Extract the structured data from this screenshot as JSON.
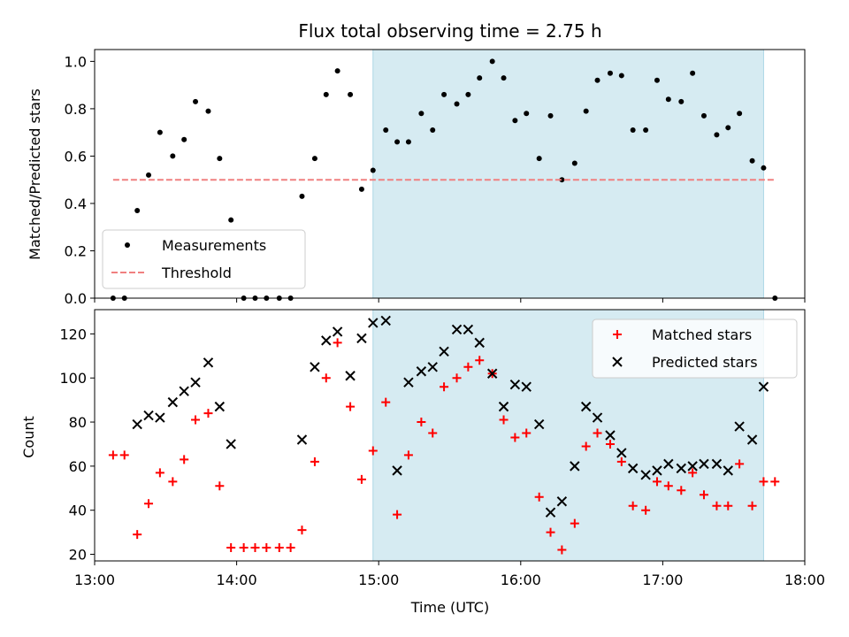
{
  "chart_data": [
    {
      "type": "scatter",
      "title": "Flux total observing time = 2.75 h",
      "xlabel": "",
      "ylabel": "Matched/Predicted stars",
      "xlim": [
        13.0,
        18.0
      ],
      "ylim": [
        0,
        1.05
      ],
      "yticks": [
        0.0,
        0.2,
        0.4,
        0.6,
        0.8,
        1.0
      ],
      "ytick_labels": [
        "0.0",
        "0.2",
        "0.4",
        "0.6",
        "0.8",
        "1.0"
      ],
      "shaded_region": {
        "x_start": 14.96,
        "x_end": 17.71
      },
      "legend": {
        "position": "lower-left",
        "entries": [
          "Measurements",
          "Threshold"
        ]
      },
      "series": [
        {
          "name": "Measurements",
          "marker": "dot",
          "color": "#000000",
          "points": [
            [
              13.13,
              0.0
            ],
            [
              13.21,
              0.0
            ],
            [
              13.3,
              0.37
            ],
            [
              13.38,
              0.52
            ],
            [
              13.46,
              0.7
            ],
            [
              13.55,
              0.6
            ],
            [
              13.63,
              0.67
            ],
            [
              13.71,
              0.83
            ],
            [
              13.8,
              0.79
            ],
            [
              13.88,
              0.59
            ],
            [
              13.96,
              0.33
            ],
            [
              14.05,
              0.0
            ],
            [
              14.13,
              0.0
            ],
            [
              14.21,
              0.0
            ],
            [
              14.3,
              0.0
            ],
            [
              14.38,
              0.0
            ],
            [
              14.46,
              0.43
            ],
            [
              14.55,
              0.59
            ],
            [
              14.63,
              0.86
            ],
            [
              14.71,
              0.96
            ],
            [
              14.8,
              0.86
            ],
            [
              14.88,
              0.46
            ],
            [
              14.96,
              0.54
            ],
            [
              15.05,
              0.71
            ],
            [
              15.13,
              0.66
            ],
            [
              15.21,
              0.66
            ],
            [
              15.3,
              0.78
            ],
            [
              15.38,
              0.71
            ],
            [
              15.46,
              0.86
            ],
            [
              15.55,
              0.82
            ],
            [
              15.63,
              0.86
            ],
            [
              15.71,
              0.93
            ],
            [
              15.8,
              1.0
            ],
            [
              15.88,
              0.93
            ],
            [
              15.96,
              0.75
            ],
            [
              16.04,
              0.78
            ],
            [
              16.13,
              0.59
            ],
            [
              16.21,
              0.77
            ],
            [
              16.29,
              0.5
            ],
            [
              16.38,
              0.57
            ],
            [
              16.46,
              0.79
            ],
            [
              16.54,
              0.92
            ],
            [
              16.63,
              0.95
            ],
            [
              16.71,
              0.94
            ],
            [
              16.79,
              0.71
            ],
            [
              16.88,
              0.71
            ],
            [
              16.96,
              0.92
            ],
            [
              17.04,
              0.84
            ],
            [
              17.13,
              0.83
            ],
            [
              17.21,
              0.95
            ],
            [
              17.29,
              0.77
            ],
            [
              17.38,
              0.69
            ],
            [
              17.46,
              0.72
            ],
            [
              17.54,
              0.78
            ],
            [
              17.63,
              0.58
            ],
            [
              17.71,
              0.55
            ],
            [
              17.79,
              0.0
            ]
          ]
        },
        {
          "name": "Threshold",
          "style": "dashed",
          "color": "#f08080",
          "points": [
            [
              13.13,
              0.5
            ],
            [
              17.79,
              0.5
            ]
          ]
        }
      ]
    },
    {
      "type": "scatter",
      "title": "",
      "xlabel": "Time (UTC)",
      "ylabel": "Count",
      "xlim": [
        13.0,
        18.0
      ],
      "ylim": [
        17,
        131
      ],
      "xticks": [
        13,
        14,
        15,
        16,
        17,
        18
      ],
      "xtick_labels": [
        "13:00",
        "14:00",
        "15:00",
        "16:00",
        "17:00",
        "18:00"
      ],
      "yticks": [
        20,
        40,
        60,
        80,
        100,
        120
      ],
      "ytick_labels": [
        "20",
        "40",
        "60",
        "80",
        "100",
        "120"
      ],
      "shaded_region": {
        "x_start": 14.96,
        "x_end": 17.71
      },
      "legend": {
        "position": "upper-right",
        "entries": [
          "Matched stars",
          "Predicted stars"
        ]
      },
      "series": [
        {
          "name": "Matched stars",
          "marker": "plus",
          "color": "#ff0000",
          "points": [
            [
              13.13,
              65
            ],
            [
              13.21,
              65
            ],
            [
              13.3,
              29
            ],
            [
              13.38,
              43
            ],
            [
              13.46,
              57
            ],
            [
              13.55,
              53
            ],
            [
              13.63,
              63
            ],
            [
              13.71,
              81
            ],
            [
              13.8,
              84
            ],
            [
              13.88,
              51
            ],
            [
              13.96,
              23
            ],
            [
              14.05,
              23
            ],
            [
              14.13,
              23
            ],
            [
              14.21,
              23
            ],
            [
              14.3,
              23
            ],
            [
              14.38,
              23
            ],
            [
              14.46,
              31
            ],
            [
              14.55,
              62
            ],
            [
              14.63,
              100
            ],
            [
              14.71,
              116
            ],
            [
              14.8,
              87
            ],
            [
              14.88,
              54
            ],
            [
              14.96,
              67
            ],
            [
              15.05,
              89
            ],
            [
              15.13,
              38
            ],
            [
              15.21,
              65
            ],
            [
              15.3,
              80
            ],
            [
              15.38,
              75
            ],
            [
              15.46,
              96
            ],
            [
              15.55,
              100
            ],
            [
              15.63,
              105
            ],
            [
              15.71,
              108
            ],
            [
              15.8,
              102
            ],
            [
              15.88,
              81
            ],
            [
              15.96,
              73
            ],
            [
              16.04,
              75
            ],
            [
              16.13,
              46
            ],
            [
              16.21,
              30
            ],
            [
              16.29,
              22
            ],
            [
              16.38,
              34
            ],
            [
              16.46,
              69
            ],
            [
              16.54,
              75
            ],
            [
              16.63,
              70
            ],
            [
              16.71,
              62
            ],
            [
              16.79,
              42
            ],
            [
              16.88,
              40
            ],
            [
              16.96,
              53
            ],
            [
              17.04,
              51
            ],
            [
              17.13,
              49
            ],
            [
              17.21,
              57
            ],
            [
              17.29,
              47
            ],
            [
              17.38,
              42
            ],
            [
              17.46,
              42
            ],
            [
              17.54,
              61
            ],
            [
              17.63,
              42
            ],
            [
              17.71,
              53
            ],
            [
              17.79,
              53
            ]
          ]
        },
        {
          "name": "Predicted stars",
          "marker": "x",
          "color": "#000000",
          "points": [
            [
              13.3,
              79
            ],
            [
              13.38,
              83
            ],
            [
              13.46,
              82
            ],
            [
              13.55,
              89
            ],
            [
              13.63,
              94
            ],
            [
              13.71,
              98
            ],
            [
              13.8,
              107
            ],
            [
              13.88,
              87
            ],
            [
              13.96,
              70
            ],
            [
              14.46,
              72
            ],
            [
              14.55,
              105
            ],
            [
              14.63,
              117
            ],
            [
              14.71,
              121
            ],
            [
              14.8,
              101
            ],
            [
              14.88,
              118
            ],
            [
              14.96,
              125
            ],
            [
              15.05,
              126
            ],
            [
              15.13,
              58
            ],
            [
              15.21,
              98
            ],
            [
              15.3,
              103
            ],
            [
              15.38,
              105
            ],
            [
              15.46,
              112
            ],
            [
              15.55,
              122
            ],
            [
              15.63,
              122
            ],
            [
              15.71,
              116
            ],
            [
              15.8,
              102
            ],
            [
              15.88,
              87
            ],
            [
              15.96,
              97
            ],
            [
              16.04,
              96
            ],
            [
              16.13,
              79
            ],
            [
              16.21,
              39
            ],
            [
              16.29,
              44
            ],
            [
              16.38,
              60
            ],
            [
              16.46,
              87
            ],
            [
              16.54,
              82
            ],
            [
              16.63,
              74
            ],
            [
              16.71,
              66
            ],
            [
              16.79,
              59
            ],
            [
              16.88,
              56
            ],
            [
              16.96,
              58
            ],
            [
              17.04,
              61
            ],
            [
              17.13,
              59
            ],
            [
              17.21,
              60
            ],
            [
              17.29,
              61
            ],
            [
              17.38,
              61
            ],
            [
              17.46,
              58
            ],
            [
              17.54,
              78
            ],
            [
              17.63,
              72
            ],
            [
              17.71,
              96
            ]
          ]
        }
      ]
    }
  ]
}
